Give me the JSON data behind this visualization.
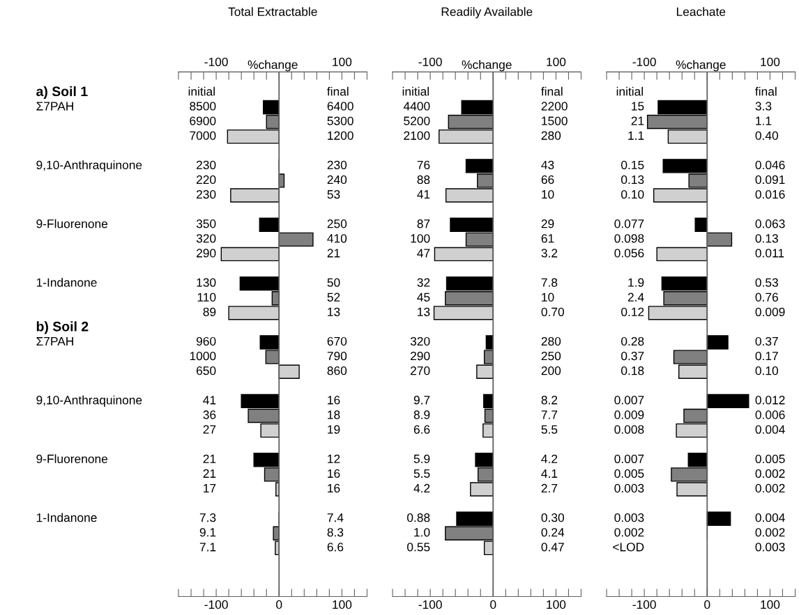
{
  "chart_data": [
    {
      "type": "bar",
      "orientation": "horizontal",
      "title": "Total Extractable",
      "x2label": "%change",
      "categories": [
        "a) Soil 1",
        "Σ7PAH",
        null,
        null,
        null,
        "9,10-Anthraquinone",
        null,
        null,
        null,
        "9-Fluorenone",
        null,
        null,
        null,
        "1-Indanone",
        null,
        null,
        "b) Soil 2",
        "Σ7PAH",
        null,
        null,
        null,
        "9,10-Anthraquinone",
        null,
        null,
        null,
        "9-Fluorenone",
        null,
        null,
        null,
        "1-Indanone",
        null,
        null
      ],
      "values": [
        null,
        -25,
        -20,
        -82,
        null,
        0,
        8,
        -77,
        null,
        -31,
        54,
        -92,
        null,
        -62,
        -11,
        -80,
        null,
        -30,
        -21,
        32,
        null,
        -60,
        -49,
        -29,
        null,
        -40,
        -23,
        -5,
        null,
        0,
        -9,
        -6
      ],
      "colors": [
        null,
        "#000000",
        "#808080",
        "#d0d0d0",
        null,
        "#000000",
        "#808080",
        "#d0d0d0",
        null,
        "#000000",
        "#808080",
        "#d0d0d0",
        null,
        "#000000",
        "#808080",
        "#d0d0d0",
        null,
        "#000000",
        "#808080",
        "#d0d0d0",
        null,
        "#000000",
        "#808080",
        "#d0d0d0",
        null,
        "#000000",
        "#808080",
        "#d0d0d0",
        null,
        "#000000",
        "#808080",
        "#d0d0d0"
      ],
      "xlim": [
        -160,
        140
      ],
      "xticks": [
        {
          "value": -160,
          "label": null
        },
        {
          "value": -140,
          "label": null
        },
        {
          "value": -120,
          "label": null
        },
        -100,
        {
          "value": -80,
          "label": null
        },
        {
          "value": -60,
          "label": null
        },
        {
          "value": -40,
          "label": null
        },
        {
          "value": -20,
          "label": null
        },
        0,
        {
          "value": 20,
          "label": null
        },
        {
          "value": 40,
          "label": null
        },
        {
          "value": 60,
          "label": null
        },
        {
          "value": 80,
          "label": null
        },
        100,
        {
          "value": 120,
          "label": null
        },
        {
          "value": 140,
          "label": null
        }
      ],
      "x2lim": [
        -160,
        140
      ],
      "x2ticks": [
        {
          "value": -160,
          "label": null
        },
        {
          "value": -140,
          "label": null
        },
        {
          "value": -120,
          "label": null
        },
        -100,
        {
          "value": -80,
          "label": null
        },
        {
          "value": -60,
          "label": null
        },
        {
          "value": -40,
          "label": null
        },
        {
          "value": -20,
          "label": null
        },
        {
          "value": 0,
          "label": null
        },
        {
          "value": 20,
          "label": null
        },
        {
          "value": 40,
          "label": null
        },
        {
          "value": 60,
          "label": null
        },
        {
          "value": 80,
          "label": null
        },
        100,
        {
          "value": 120,
          "label": null
        },
        {
          "value": 140,
          "label": null
        }
      ],
      "ref_lines": [
        {
          "axis": "x",
          "value": 0,
          "color": "#606060"
        }
      ],
      "grid": false,
      "legend": false,
      "annotations": [
        "initial",
        "final",
        "8500",
        "6900",
        "7000",
        "230",
        "220",
        "230",
        "350",
        "320",
        "290",
        "130",
        "110",
        "89",
        "960",
        "1000",
        "650",
        "41",
        "36",
        "27",
        "21",
        "21",
        "17",
        "7.3",
        "9.1",
        "7.1",
        "6400",
        "5300",
        "1200",
        "230",
        "240",
        "53",
        "250",
        "410",
        "21",
        "50",
        "52",
        "13",
        "670",
        "790",
        "860",
        "16",
        "18",
        "19",
        "12",
        "16",
        "16",
        "7.4",
        "8.3",
        "6.6"
      ]
    },
    {
      "type": "bar",
      "orientation": "horizontal",
      "title": "Readily Available",
      "x2label": "%change",
      "categories": [
        null,
        null,
        null,
        null,
        null,
        null,
        null,
        null,
        null,
        null,
        null,
        null,
        null,
        null,
        null,
        null,
        null,
        null,
        null,
        null,
        null,
        null,
        null,
        null,
        null,
        null,
        null,
        null,
        null,
        null,
        null,
        null
      ],
      "values": [
        null,
        -50,
        -71,
        -86,
        null,
        -43,
        -25,
        -75,
        null,
        -68,
        -43,
        -93,
        null,
        -74,
        -76,
        -94,
        null,
        -11,
        -14,
        -26,
        null,
        -15,
        -13,
        -16,
        null,
        -28,
        -24,
        -36,
        null,
        -58,
        -76,
        -14
      ],
      "colors": [
        null,
        "#000000",
        "#808080",
        "#d0d0d0",
        null,
        "#000000",
        "#808080",
        "#d0d0d0",
        null,
        "#000000",
        "#808080",
        "#d0d0d0",
        null,
        "#000000",
        "#808080",
        "#d0d0d0",
        null,
        "#000000",
        "#808080",
        "#d0d0d0",
        null,
        "#000000",
        "#808080",
        "#d0d0d0",
        null,
        "#000000",
        "#808080",
        "#d0d0d0",
        null,
        "#000000",
        "#808080",
        "#d0d0d0"
      ],
      "xlim": [
        -160,
        140
      ],
      "xticks": [
        {
          "value": -160,
          "label": null
        },
        {
          "value": -140,
          "label": null
        },
        {
          "value": -120,
          "label": null
        },
        -100,
        {
          "value": -80,
          "label": null
        },
        {
          "value": -60,
          "label": null
        },
        {
          "value": -40,
          "label": null
        },
        {
          "value": -20,
          "label": null
        },
        0,
        {
          "value": 20,
          "label": null
        },
        {
          "value": 40,
          "label": null
        },
        {
          "value": 60,
          "label": null
        },
        {
          "value": 80,
          "label": null
        },
        100,
        {
          "value": 120,
          "label": null
        },
        {
          "value": 140,
          "label": null
        }
      ],
      "x2lim": [
        -160,
        140
      ],
      "x2ticks": [
        {
          "value": -160,
          "label": null
        },
        {
          "value": -140,
          "label": null
        },
        {
          "value": -120,
          "label": null
        },
        -100,
        {
          "value": -80,
          "label": null
        },
        {
          "value": -60,
          "label": null
        },
        {
          "value": -40,
          "label": null
        },
        {
          "value": -20,
          "label": null
        },
        {
          "value": 0,
          "label": null
        },
        {
          "value": 20,
          "label": null
        },
        {
          "value": 40,
          "label": null
        },
        {
          "value": 60,
          "label": null
        },
        {
          "value": 80,
          "label": null
        },
        100,
        {
          "value": 120,
          "label": null
        },
        {
          "value": 140,
          "label": null
        }
      ],
      "ref_lines": [
        {
          "axis": "x",
          "value": 0,
          "color": "#606060"
        }
      ],
      "grid": false,
      "legend": false,
      "annotations": [
        "initial",
        "final",
        "4400",
        "5200",
        "2100",
        "76",
        "88",
        "41",
        "87",
        "100",
        "47",
        "32",
        "45",
        "13",
        "320",
        "290",
        "270",
        "9.7",
        "8.9",
        "6.6",
        "5.9",
        "5.5",
        "4.2",
        "0.88",
        "1.0",
        "0.55",
        "2200",
        "1500",
        "280",
        "43",
        "66",
        "10",
        "29",
        "61",
        "3.2",
        "7.8",
        "10",
        "0.70",
        "280",
        "250",
        "200",
        "8.2",
        "7.7",
        "5.5",
        "4.2",
        "4.1",
        "2.7",
        "0.30",
        "0.24",
        "0.47"
      ]
    },
    {
      "type": "bar",
      "orientation": "horizontal",
      "title": "Leachate",
      "x2label": "%change",
      "categories": [
        null,
        null,
        null,
        null,
        null,
        null,
        null,
        null,
        null,
        null,
        null,
        null,
        null,
        null,
        null,
        null,
        null,
        null,
        null,
        null,
        null,
        null,
        null,
        null,
        null,
        null,
        null,
        null,
        null,
        null,
        null,
        null
      ],
      "values": [
        null,
        -78,
        -95,
        -62,
        null,
        -70,
        -29,
        -85,
        null,
        -19,
        39,
        -80,
        null,
        -72,
        -69,
        -93,
        null,
        33,
        -53,
        -45,
        null,
        66,
        -37,
        -49,
        null,
        -30,
        -57,
        -48,
        null,
        37,
        0,
        null
      ],
      "colors": [
        null,
        "#000000",
        "#808080",
        "#d0d0d0",
        null,
        "#000000",
        "#808080",
        "#d0d0d0",
        null,
        "#000000",
        "#808080",
        "#d0d0d0",
        null,
        "#000000",
        "#808080",
        "#d0d0d0",
        null,
        "#000000",
        "#808080",
        "#d0d0d0",
        null,
        "#000000",
        "#808080",
        "#d0d0d0",
        null,
        "#000000",
        "#808080",
        "#d0d0d0",
        null,
        "#000000",
        "#808080",
        "#d0d0d0"
      ],
      "xlim": [
        -160,
        140
      ],
      "xticks": [
        {
          "value": -160,
          "label": null
        },
        {
          "value": -140,
          "label": null
        },
        {
          "value": -120,
          "label": null
        },
        -100,
        {
          "value": -80,
          "label": null
        },
        {
          "value": -60,
          "label": null
        },
        {
          "value": -40,
          "label": null
        },
        {
          "value": -20,
          "label": null
        },
        0,
        {
          "value": 20,
          "label": null
        },
        {
          "value": 40,
          "label": null
        },
        {
          "value": 60,
          "label": null
        },
        {
          "value": 80,
          "label": null
        },
        100,
        {
          "value": 120,
          "label": null
        },
        {
          "value": 140,
          "label": null
        }
      ],
      "x2lim": [
        -160,
        140
      ],
      "x2ticks": [
        {
          "value": -160,
          "label": null
        },
        {
          "value": -140,
          "label": null
        },
        {
          "value": -120,
          "label": null
        },
        -100,
        {
          "value": -80,
          "label": null
        },
        {
          "value": -60,
          "label": null
        },
        {
          "value": -40,
          "label": null
        },
        {
          "value": -20,
          "label": null
        },
        {
          "value": 0,
          "label": null
        },
        {
          "value": 20,
          "label": null
        },
        {
          "value": 40,
          "label": null
        },
        {
          "value": 60,
          "label": null
        },
        {
          "value": 80,
          "label": null
        },
        100,
        {
          "value": 120,
          "label": null
        },
        {
          "value": 140,
          "label": null
        }
      ],
      "ref_lines": [
        {
          "axis": "x",
          "value": 0,
          "color": "#606060"
        }
      ],
      "grid": false,
      "legend": false,
      "annotations": [
        "initial",
        "final",
        "15",
        "21",
        "1.1",
        "0.15",
        "0.13",
        "0.10",
        "0.077",
        "0.098",
        "0.056",
        "1.9",
        "2.4",
        "0.12",
        "0.28",
        "0.37",
        "0.18",
        "0.007",
        "0.009",
        "0.008",
        "0.007",
        "0.005",
        "0.003",
        "0.003",
        "0.002",
        "<LOD",
        "3.3",
        "1.1",
        "0.40",
        "0.046",
        "0.091",
        "0.016",
        "0.063",
        "0.13",
        "0.011",
        "0.53",
        "0.76",
        "0.009",
        "0.37",
        "0.17",
        "0.10",
        "0.012",
        "0.006",
        "0.004",
        "0.005",
        "0.002",
        "0.002",
        "0.004",
        "0.002",
        "0.003"
      ]
    }
  ]
}
